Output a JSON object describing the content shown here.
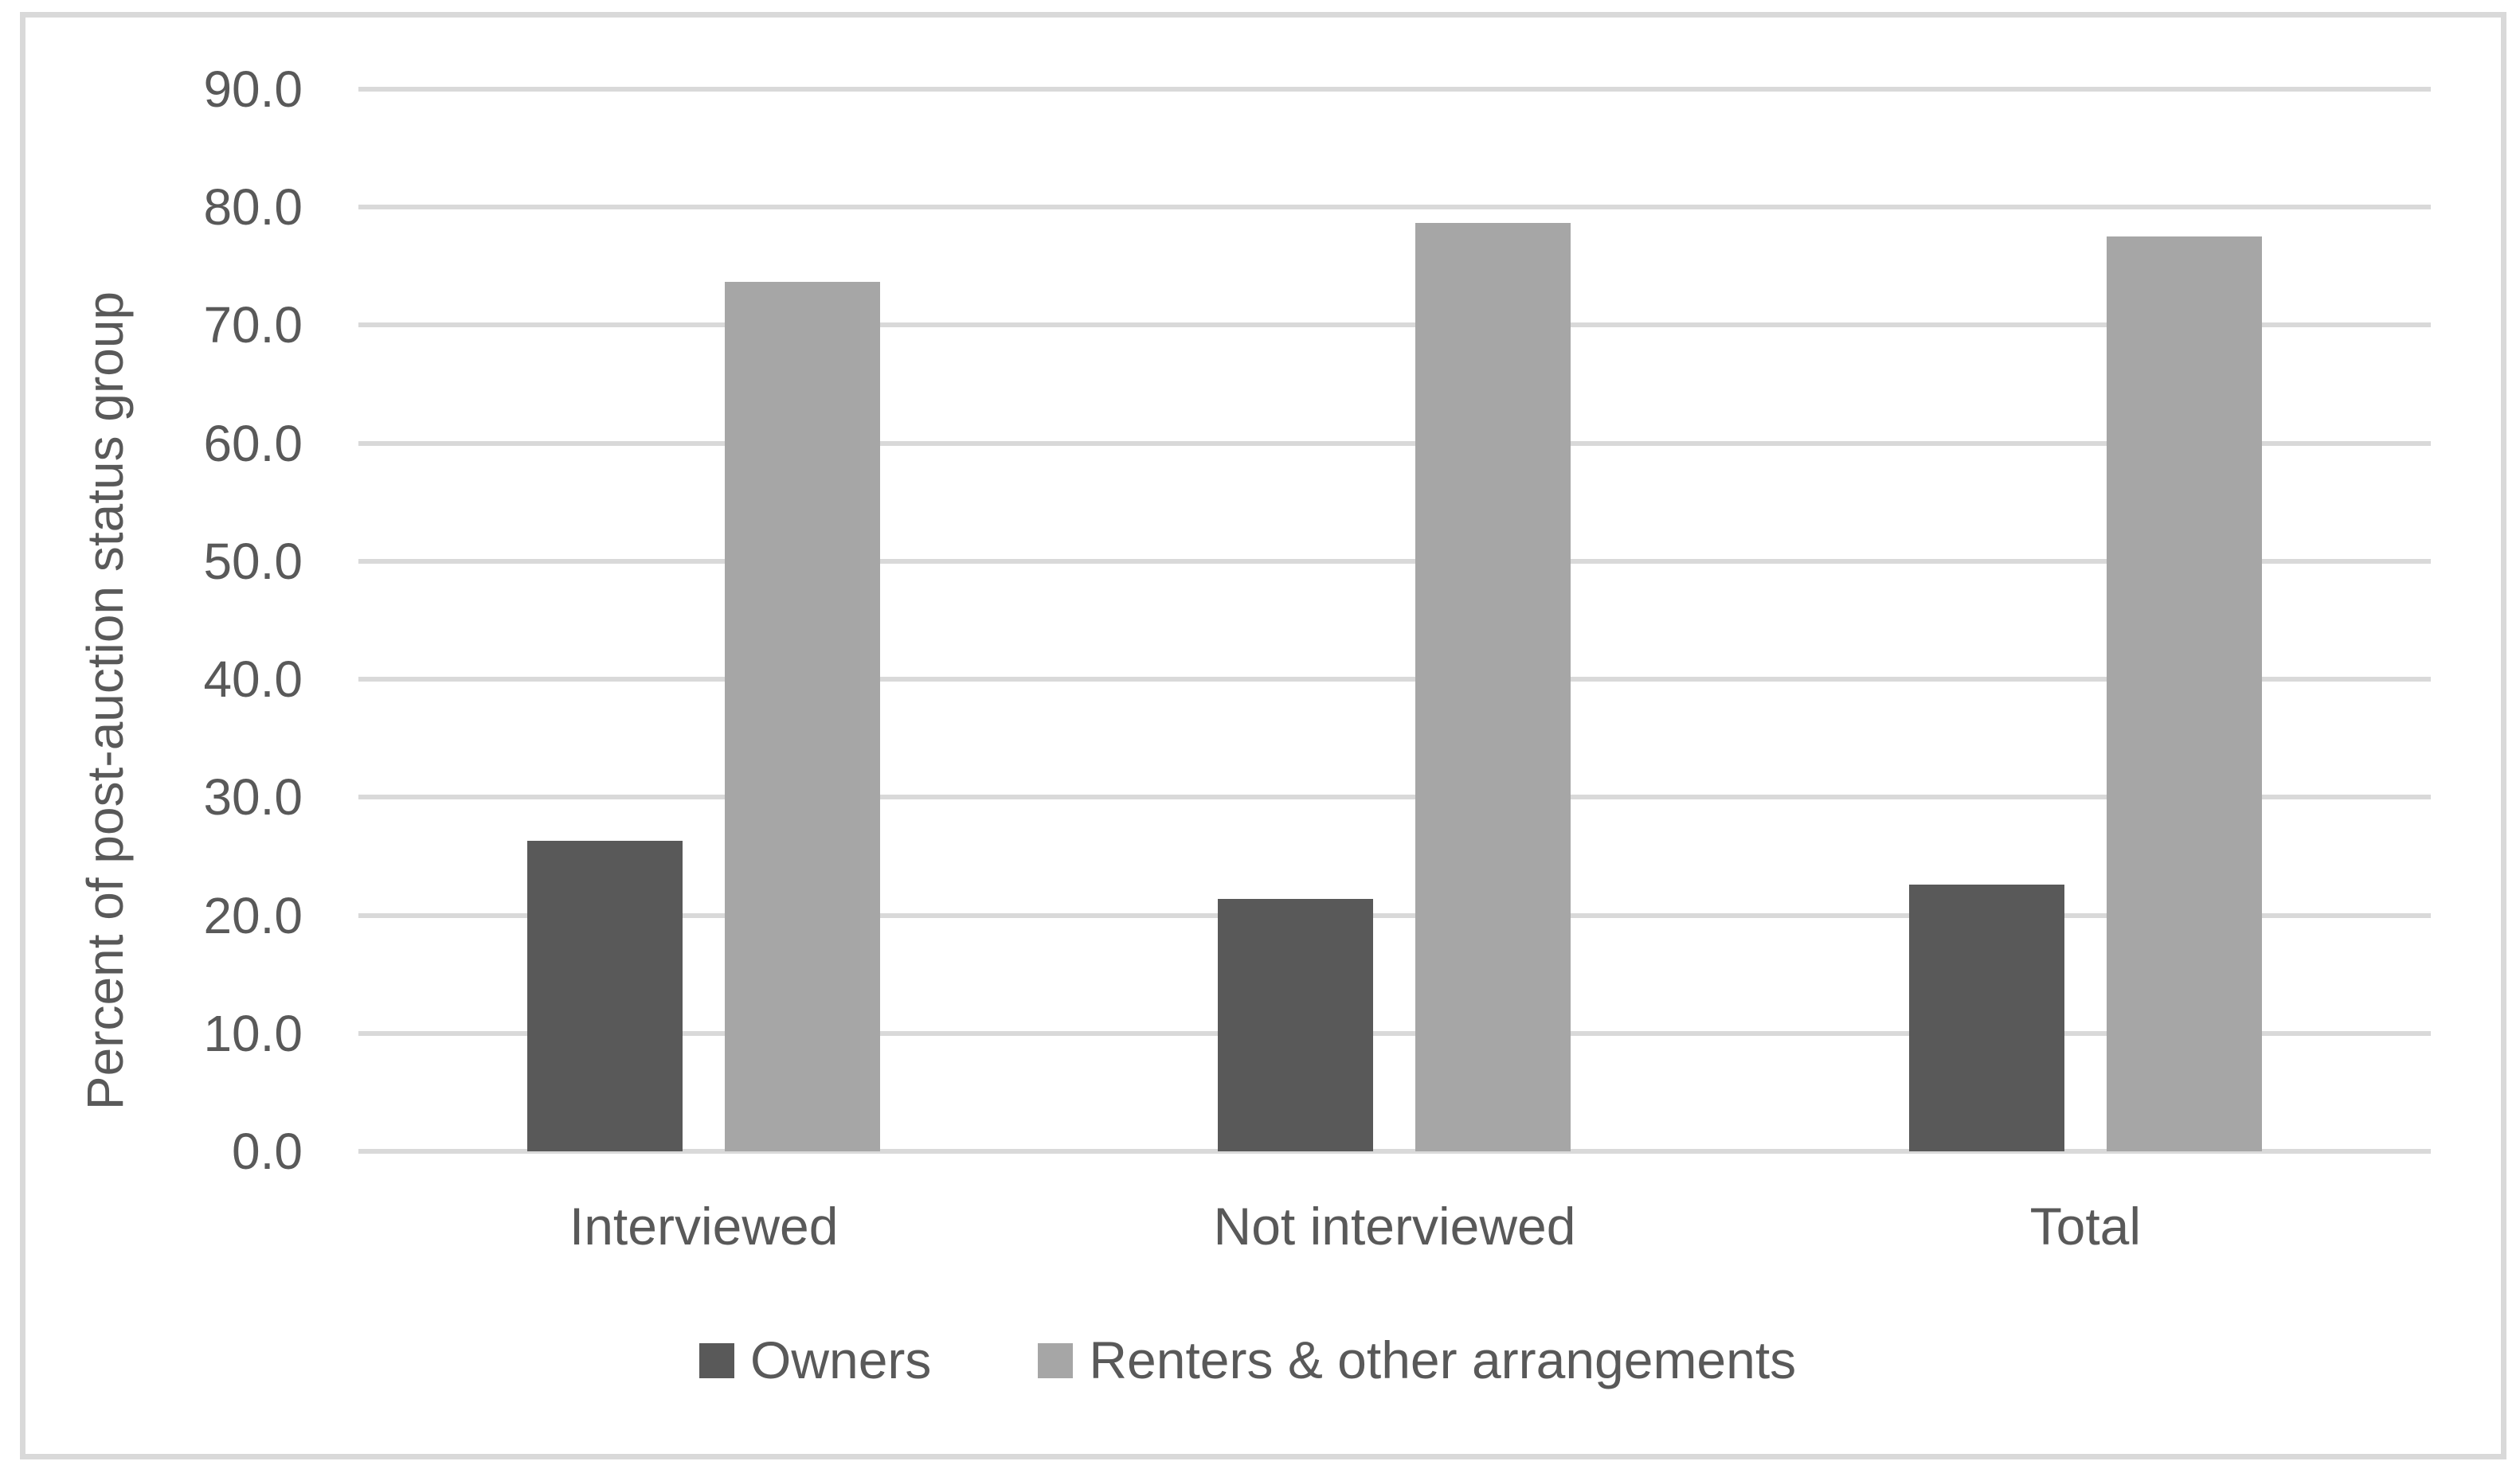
{
  "chart_data": {
    "type": "bar",
    "categories": [
      "Interviewed",
      "Not interviewed",
      "Total"
    ],
    "series": [
      {
        "name": "Owners",
        "color": "#595959",
        "values": [
          26.3,
          21.4,
          22.6
        ]
      },
      {
        "name": "Renters & other arrangements",
        "color": "#a6a6a6",
        "values": [
          73.7,
          78.7,
          77.5
        ]
      }
    ],
    "xlabel": "",
    "ylabel": "Percent of post-auction status group",
    "ylim": [
      0,
      90
    ],
    "ytick_step": 10,
    "ytick_labels": [
      "0.0",
      "10.0",
      "20.0",
      "30.0",
      "40.0",
      "50.0",
      "60.0",
      "70.0",
      "80.0",
      "90.0"
    ],
    "grid": true,
    "legend_position": "bottom"
  },
  "colors": {
    "background": "#ffffff",
    "gridline": "#d9d9d9",
    "frame_border": "#d9d9d9",
    "text": "#595959",
    "owners_bar": "#595959",
    "renters_bar": "#a6a6a6"
  }
}
